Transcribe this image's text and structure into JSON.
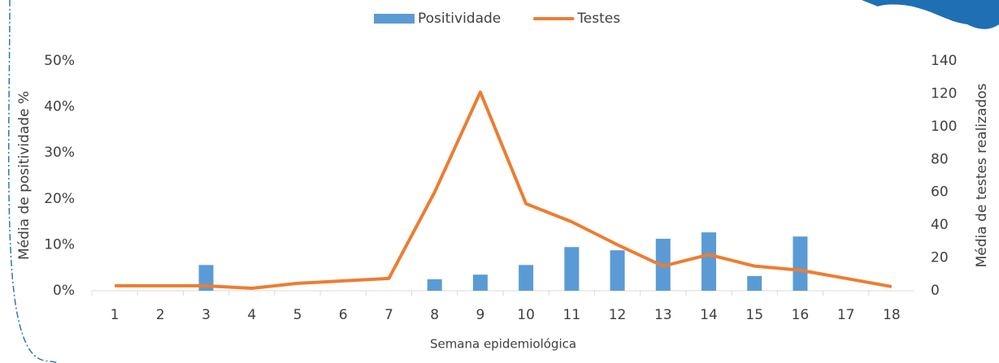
{
  "chart_data": {
    "type": "bar",
    "categories": [
      "1",
      "2",
      "3",
      "4",
      "5",
      "6",
      "7",
      "8",
      "9",
      "10",
      "11",
      "12",
      "13",
      "14",
      "15",
      "16",
      "17",
      "18"
    ],
    "xlabel": "Semana epidemiológica",
    "ylabel": "Média de positividade %",
    "y2label": "Média de testes realizados",
    "series": [
      {
        "name": "Positividade",
        "type": "bar",
        "color": "#5b9bd5",
        "values": [
          0,
          0,
          5.6,
          0,
          0,
          0,
          0,
          2.5,
          3.5,
          5.6,
          9.5,
          8.8,
          11.3,
          12.7,
          3.2,
          11.8,
          0,
          0
        ]
      },
      {
        "name": "Testes",
        "type": "line",
        "axis": "y2",
        "color": "#ed7d31",
        "values": [
          3,
          3,
          3,
          1.5,
          4.5,
          6,
          7.5,
          60,
          121,
          53,
          42,
          28,
          15,
          22,
          15,
          12.5,
          7.5,
          2.5
        ]
      }
    ],
    "ylim": [
      0,
      50
    ],
    "yticks": [
      {
        "value": 0,
        "label": "0%"
      },
      {
        "value": 10,
        "label": "10%"
      },
      {
        "value": 20,
        "label": "20%"
      },
      {
        "value": 30,
        "label": "30%"
      },
      {
        "value": 40,
        "label": "40%"
      },
      {
        "value": 50,
        "label": "50%"
      }
    ],
    "y2lim": [
      0,
      140
    ],
    "y2ticks": [
      0,
      20,
      40,
      60,
      80,
      100,
      120,
      140
    ],
    "legend": "top"
  }
}
